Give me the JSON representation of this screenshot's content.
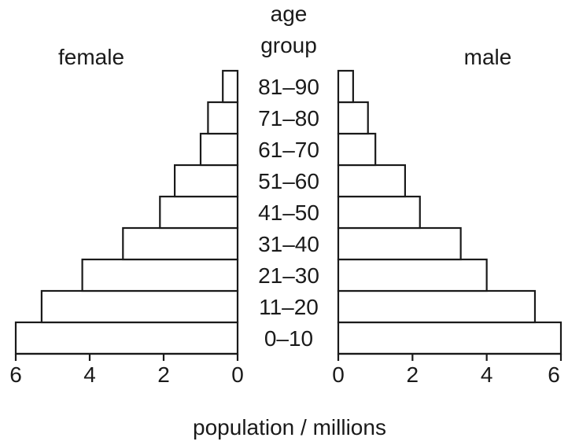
{
  "chart_data": {
    "type": "bar",
    "orientation": "horizontal",
    "center_label": [
      "age",
      "group"
    ],
    "xlabel": "population / millions",
    "categories": [
      "0–10",
      "11–20",
      "21–30",
      "31–40",
      "41–50",
      "51–60",
      "61–70",
      "71–80",
      "81–90"
    ],
    "series": [
      {
        "name": "female",
        "side": "left",
        "values": [
          6.0,
          5.3,
          4.2,
          3.1,
          2.1,
          1.7,
          1.0,
          0.8,
          0.4
        ]
      },
      {
        "name": "male",
        "side": "right",
        "values": [
          6.0,
          5.3,
          4.0,
          3.3,
          2.2,
          1.8,
          1.0,
          0.8,
          0.4
        ]
      }
    ],
    "xlim": [
      0,
      6
    ],
    "left_ticks": [
      "6",
      "4",
      "2",
      "0"
    ],
    "right_ticks": [
      "0",
      "2",
      "4",
      "6"
    ],
    "grid": false
  }
}
